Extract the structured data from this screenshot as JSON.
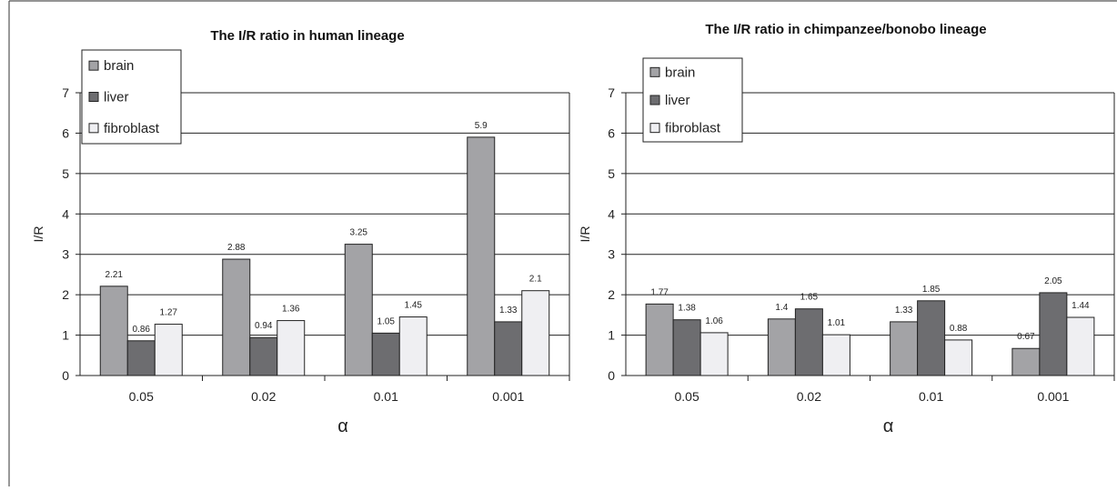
{
  "chart_data": [
    {
      "type": "bar",
      "title": "The I/R ratio in human lineage",
      "xlabel": "α",
      "ylabel": "I/R",
      "categories": [
        "0.05",
        "0.02",
        "0.01",
        "0.001"
      ],
      "ylim": [
        0,
        7
      ],
      "yticks": [
        "0",
        "1",
        "2",
        "3",
        "4",
        "5",
        "6",
        "7"
      ],
      "grid": true,
      "legend_position": "top-left",
      "series": [
        {
          "name": "brain",
          "color": "#a3a3a6",
          "values": [
            2.21,
            2.88,
            3.25,
            5.9
          ],
          "labels": [
            "2.21",
            "2.88",
            "3.25",
            "5.9"
          ]
        },
        {
          "name": "liver",
          "color": "#6d6d70",
          "values": [
            0.86,
            0.94,
            1.05,
            1.33
          ],
          "labels": [
            "0.86",
            "0.94",
            "1.05",
            "1.33"
          ]
        },
        {
          "name": "fibroblast",
          "color": "#efeff2",
          "values": [
            1.27,
            1.36,
            1.45,
            2.1
          ],
          "labels": [
            "1.27",
            "1.36",
            "1.45",
            "2.1"
          ]
        }
      ]
    },
    {
      "type": "bar",
      "title": "The I/R ratio in chimpanzee/bonobo lineage",
      "xlabel": "α",
      "ylabel": "I/R",
      "categories": [
        "0.05",
        "0.02",
        "0.01",
        "0.001"
      ],
      "ylim": [
        0,
        7
      ],
      "yticks": [
        "0",
        "1",
        "2",
        "3",
        "4",
        "5",
        "6",
        "7"
      ],
      "grid": true,
      "legend_position": "top-left",
      "series": [
        {
          "name": "brain",
          "color": "#a3a3a6",
          "values": [
            1.77,
            1.4,
            1.33,
            0.67
          ],
          "labels": [
            "1.77",
            "1.4",
            "1.33",
            "0.67"
          ]
        },
        {
          "name": "liver",
          "color": "#6d6d70",
          "values": [
            1.38,
            1.65,
            1.85,
            2.05
          ],
          "labels": [
            "1.38",
            "1.65",
            "1.85",
            "2.05"
          ]
        },
        {
          "name": "fibroblast",
          "color": "#efeff2",
          "values": [
            1.06,
            1.01,
            0.88,
            1.44
          ],
          "labels": [
            "1.06",
            "1.01",
            "0.88",
            "1.44"
          ]
        }
      ]
    }
  ]
}
